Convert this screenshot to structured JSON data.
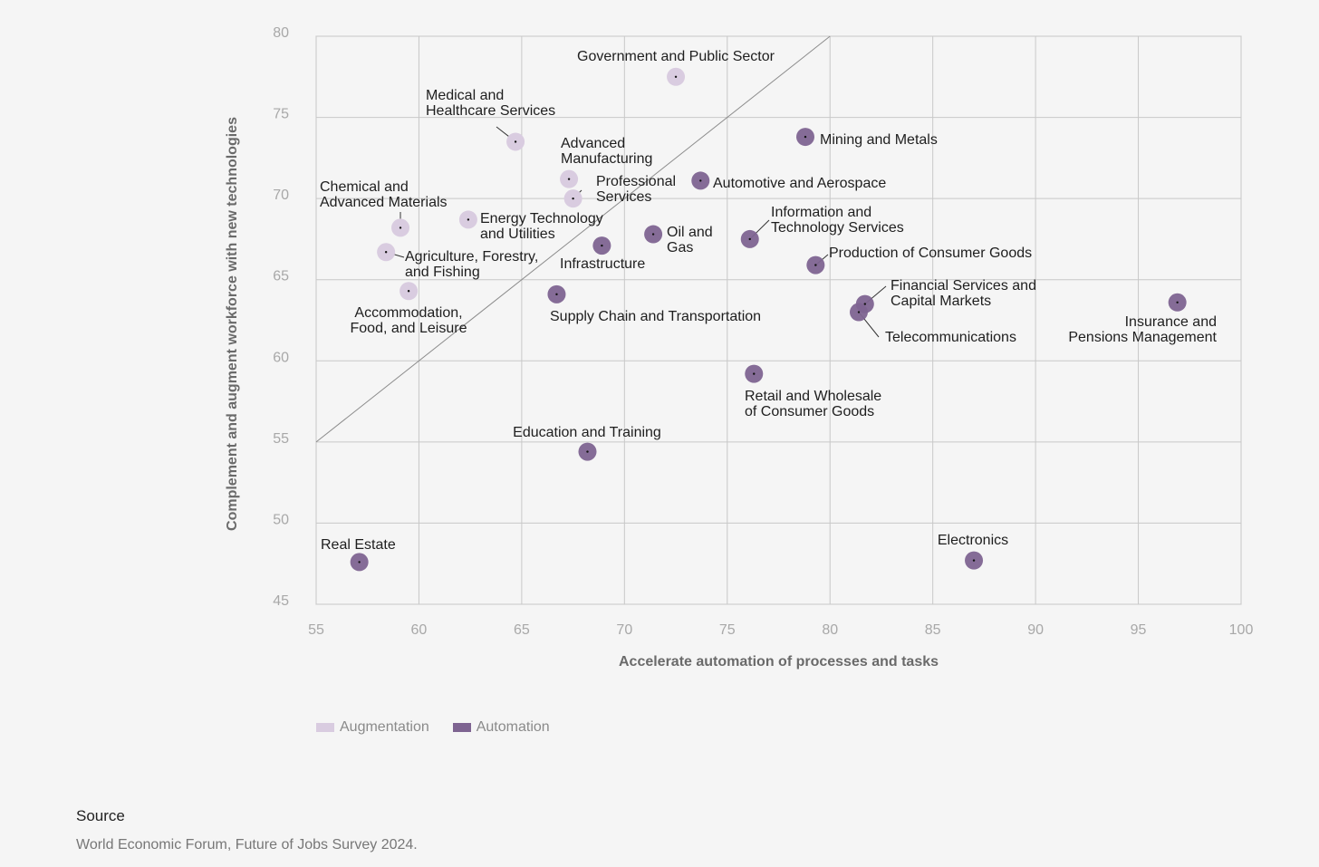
{
  "chart_data": {
    "type": "scatter",
    "xlabel": "Accelerate automation of processes and tasks",
    "ylabel": "Complement and augment workforce with new technologies",
    "xlim": [
      55,
      100
    ],
    "ylim": [
      45,
      80
    ],
    "xticks": [
      55,
      60,
      65,
      70,
      75,
      80,
      85,
      90,
      95,
      100
    ],
    "yticks": [
      45,
      50,
      55,
      60,
      65,
      70,
      75,
      80
    ],
    "grid": true,
    "reference_line": {
      "from": [
        55,
        55
      ],
      "to": [
        80,
        80
      ]
    },
    "legend_position": "bottom-left",
    "series": [
      {
        "name": "Augmentation",
        "color": "#d9cce0",
        "points": [
          {
            "label": "Government and Public Sector",
            "x": 72.5,
            "y": 77.5
          },
          {
            "label": "Medical and Healthcare Services",
            "x": 64.7,
            "y": 73.5
          },
          {
            "label": "Advanced Manufacturing",
            "x": 67.3,
            "y": 71.2
          },
          {
            "label": "Professional Services",
            "x": 67.5,
            "y": 70.0
          },
          {
            "label": "Chemical and Advanced Materials",
            "x": 59.1,
            "y": 68.2
          },
          {
            "label": "Energy Technology and Utilities",
            "x": 62.4,
            "y": 68.7
          },
          {
            "label": "Agriculture, Forestry, and Fishing",
            "x": 58.4,
            "y": 66.7
          },
          {
            "label": "Accommodation, Food, and Leisure",
            "x": 59.5,
            "y": 64.3
          }
        ]
      },
      {
        "name": "Automation",
        "color": "#7e6491",
        "points": [
          {
            "label": "Mining and Metals",
            "x": 78.8,
            "y": 73.8
          },
          {
            "label": "Automotive and Aerospace",
            "x": 73.7,
            "y": 71.1
          },
          {
            "label": "Oil and Gas",
            "x": 71.4,
            "y": 67.8
          },
          {
            "label": "Infrastructure",
            "x": 68.9,
            "y": 67.1
          },
          {
            "label": "Information and Technology Services",
            "x": 76.1,
            "y": 67.5
          },
          {
            "label": "Production of Consumer Goods",
            "x": 79.3,
            "y": 65.9
          },
          {
            "label": "Supply Chain and Transportation",
            "x": 66.7,
            "y": 64.1
          },
          {
            "label": "Financial Services and Capital Markets",
            "x": 81.7,
            "y": 63.5
          },
          {
            "label": "Telecommunications",
            "x": 81.4,
            "y": 63.0
          },
          {
            "label": "Insurance and Pensions Management",
            "x": 96.9,
            "y": 63.6
          },
          {
            "label": "Retail and Wholesale of Consumer Goods",
            "x": 76.3,
            "y": 59.2
          },
          {
            "label": "Education and Training",
            "x": 68.2,
            "y": 54.4
          },
          {
            "label": "Real Estate",
            "x": 57.1,
            "y": 47.6
          },
          {
            "label": "Electronics",
            "x": 87.0,
            "y": 47.7
          }
        ]
      }
    ]
  },
  "source": {
    "title": "Source",
    "text": "World Economic Forum, Future of Jobs Survey 2024."
  }
}
